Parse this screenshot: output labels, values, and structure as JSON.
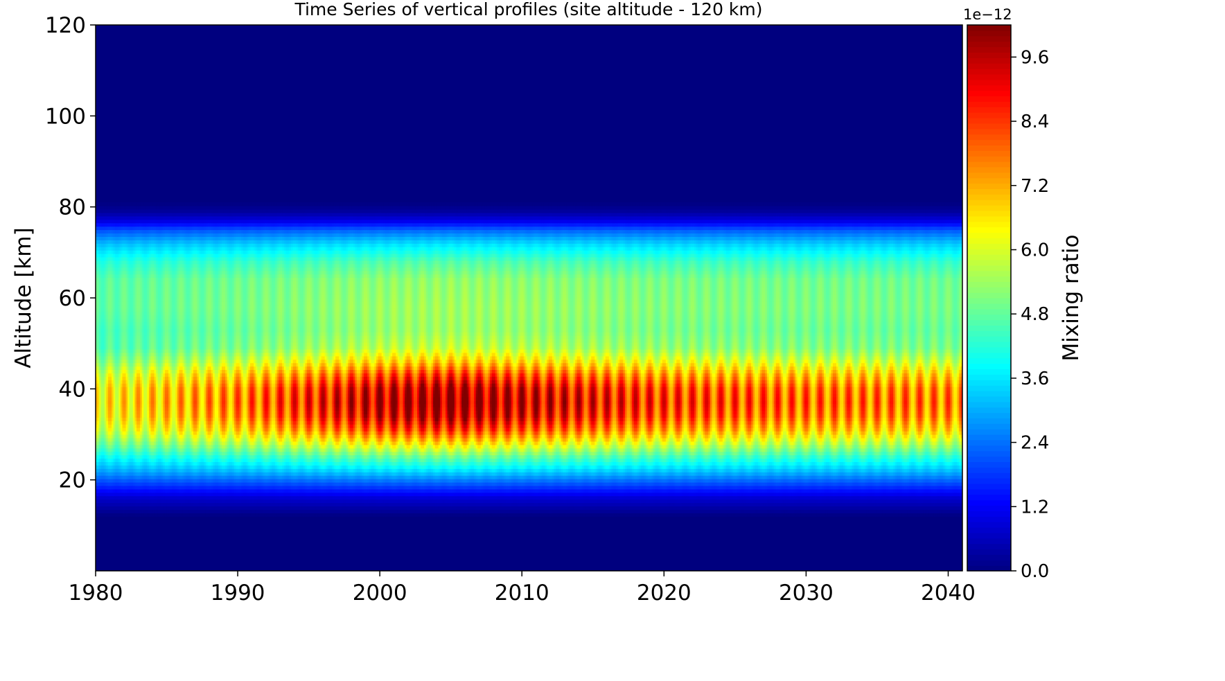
{
  "chart_data": {
    "type": "heatmap",
    "title": "Time Series of vertical profiles (site altitude - 120 km)",
    "xlabel": "",
    "ylabel": "Altitude [km]",
    "xlim": [
      1980,
      2041
    ],
    "ylim": [
      0,
      120
    ],
    "x_ticks": [
      "1980",
      "1990",
      "2000",
      "2010",
      "2020",
      "2030",
      "2040"
    ],
    "y_ticks": [
      "20",
      "40",
      "60",
      "80",
      "100",
      "120"
    ],
    "colorbar": {
      "label": "Mixing ratio",
      "exponent": "1e−12",
      "range": [
        0,
        10.2
      ],
      "ticks": [
        "0.0",
        "1.2",
        "2.4",
        "3.6",
        "4.8",
        "6.0",
        "7.2",
        "8.4",
        "9.6"
      ],
      "colormap": "jet"
    },
    "field": {
      "period_years": 1,
      "profile": [
        {
          "altitude": 0,
          "value": 0
        },
        {
          "altitude": 12,
          "value": 0
        },
        {
          "altitude": 16,
          "value": 0.8
        },
        {
          "altitude": 18,
          "value": 1.6
        },
        {
          "altitude": 20,
          "value": 2.4
        },
        {
          "altitude": 22,
          "value": 3.3
        },
        {
          "altitude": 25,
          "value": 4.5
        },
        {
          "altitude": 28,
          "value": 6.0
        },
        {
          "altitude": 31,
          "value": 7.4
        },
        {
          "altitude": 34,
          "value": 8.3
        },
        {
          "altitude": 37,
          "value": 8.6
        },
        {
          "altitude": 40,
          "value": 8.4
        },
        {
          "altitude": 43,
          "value": 7.5
        },
        {
          "altitude": 46,
          "value": 6.3
        },
        {
          "altitude": 49,
          "value": 5.4
        },
        {
          "altitude": 53,
          "value": 5.1
        },
        {
          "altitude": 58,
          "value": 5.2
        },
        {
          "altitude": 64,
          "value": 5.1
        },
        {
          "altitude": 68,
          "value": 4.5
        },
        {
          "altitude": 72,
          "value": 3.4
        },
        {
          "altitude": 75,
          "value": 2.2
        },
        {
          "altitude": 77,
          "value": 1.0
        },
        {
          "altitude": 79,
          "value": 0.3
        },
        {
          "altitude": 81,
          "value": 0
        },
        {
          "altitude": 120,
          "value": 0
        }
      ],
      "trend": [
        {
          "year": 1980,
          "factor": 0.82
        },
        {
          "year": 1990,
          "factor": 0.92
        },
        {
          "year": 2000,
          "factor": 1.07
        },
        {
          "year": 2005,
          "factor": 1.1
        },
        {
          "year": 2010,
          "factor": 1.06
        },
        {
          "year": 2020,
          "factor": 0.98
        },
        {
          "year": 2030,
          "factor": 0.94
        },
        {
          "year": 2041,
          "factor": 0.92
        }
      ]
    }
  }
}
